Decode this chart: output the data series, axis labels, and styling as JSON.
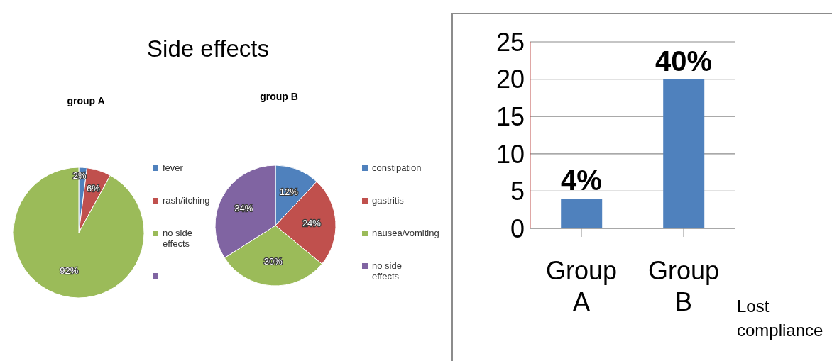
{
  "chart_data": [
    {
      "type": "pie",
      "title": "Side effects",
      "subtitle": "group A",
      "categories": [
        "fever",
        "rash/itching",
        "no side effects",
        null
      ],
      "values": [
        2,
        6,
        92,
        0
      ],
      "colors": [
        "#4f81bd",
        "#c0504d",
        "#9bbb59",
        "#8064a2"
      ],
      "value_labels": [
        "2%",
        "6%",
        "92%",
        null
      ],
      "legend": "right"
    },
    {
      "type": "pie",
      "title": "group B",
      "categories": [
        "constipation",
        "gastritis",
        "nausea/vomiting",
        "no side effects"
      ],
      "values": [
        12,
        24,
        30,
        34
      ],
      "colors": [
        "#4f81bd",
        "#c0504d",
        "#9bbb59",
        "#8064a2"
      ],
      "value_labels": [
        "12%",
        "24%",
        "30%",
        "34%"
      ],
      "legend": "right"
    },
    {
      "type": "bar",
      "categories": [
        "Group A",
        "Group B"
      ],
      "values": [
        4,
        20
      ],
      "color": "#4f81bd",
      "annotations": [
        {
          "text": "4%",
          "x": "Group A",
          "y": 4
        },
        {
          "text": "40%",
          "x": "Group B",
          "y": 20
        }
      ],
      "xlabel": "Lost compliance",
      "ylim": [
        0,
        25
      ],
      "yticks": [
        0,
        5,
        10,
        15,
        20,
        25
      ],
      "grid": "y"
    }
  ]
}
